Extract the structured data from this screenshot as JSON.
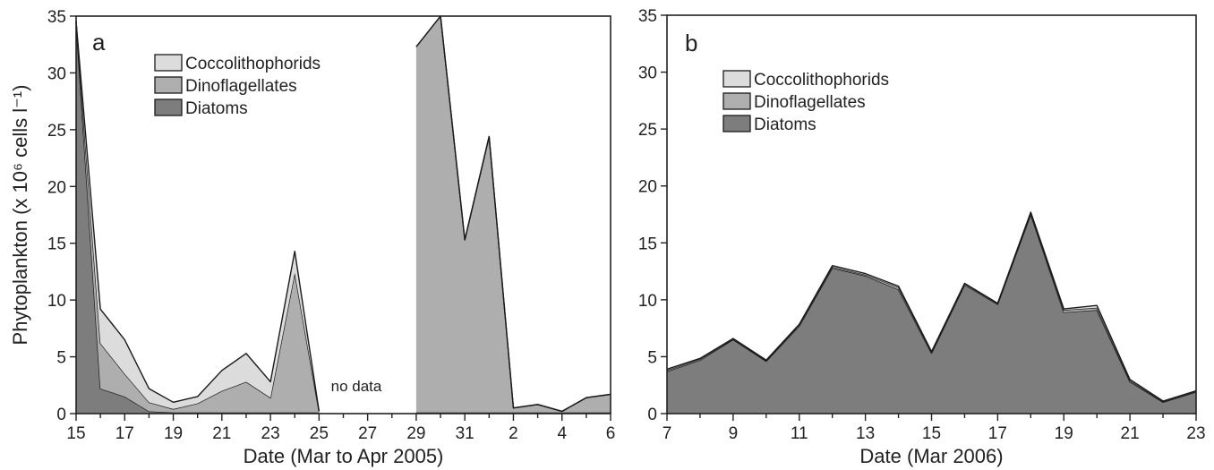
{
  "chart_data": [
    {
      "type": "area",
      "panel_label": "a",
      "xlabel": "Date (Mar to Apr 2005)",
      "ylabel": "Phytoplankton (x 10⁶ cells l⁻¹)",
      "ylim": [
        0,
        35
      ],
      "yticks": [
        0,
        5,
        10,
        15,
        20,
        25,
        30,
        35
      ],
      "x": [
        15,
        16,
        17,
        18,
        19,
        20,
        21,
        22,
        23,
        24,
        25,
        26,
        27,
        28,
        29,
        30,
        31,
        32,
        33,
        34,
        35,
        36,
        37
      ],
      "xtick_labels": [
        "15",
        "17",
        "19",
        "21",
        "23",
        "25",
        "27",
        "29",
        "31",
        "2",
        "4",
        "6"
      ],
      "stacked": true,
      "series": [
        {
          "name": "Diatoms",
          "color": "#7d7d7d",
          "values": [
            34.5,
            2.2,
            1.5,
            0.2,
            0.1,
            0.1,
            0.1,
            0.1,
            0.1,
            0.1,
            0.1,
            null,
            null,
            null,
            0.1,
            0.1,
            0.1,
            0.1,
            0.1,
            0.1,
            0.1,
            0.1,
            0.1
          ]
        },
        {
          "name": "Dinoflagellates",
          "color": "#aeaeae",
          "values": [
            0,
            4.0,
            2.0,
            0.8,
            0.3,
            0.8,
            1.9,
            2.7,
            1.3,
            12.3,
            0.1,
            null,
            null,
            null,
            32.2,
            34.9,
            15.2,
            24.3,
            0.4,
            0.7,
            0.1,
            1.3,
            1.6
          ]
        },
        {
          "name": "Coccolithophorids",
          "color": "#dcdcdc",
          "values": [
            0,
            3.0,
            3.0,
            1.2,
            0.6,
            0.6,
            1.8,
            2.5,
            1.4,
            1.9,
            0,
            null,
            null,
            null,
            0,
            0,
            0,
            0,
            0,
            0,
            0,
            0,
            0
          ]
        }
      ],
      "annotations": [
        "no data"
      ],
      "legend": "top-left"
    },
    {
      "type": "area",
      "panel_label": "b",
      "xlabel": "Date (Mar 2006)",
      "ylabel": "",
      "ylim": [
        0,
        35
      ],
      "yticks": [
        0,
        5,
        10,
        15,
        20,
        25,
        30,
        35
      ],
      "x": [
        7,
        8,
        9,
        10,
        11,
        12,
        13,
        14,
        15,
        16,
        17,
        18,
        19,
        20,
        21,
        22,
        23
      ],
      "xtick_labels": [
        "7",
        "9",
        "11",
        "13",
        "15",
        "17",
        "19",
        "21",
        "23"
      ],
      "stacked": true,
      "series": [
        {
          "name": "Diatoms",
          "color": "#7d7d7d",
          "values": [
            3.7,
            4.7,
            6.5,
            4.6,
            7.7,
            12.8,
            12.1,
            10.9,
            5.3,
            11.3,
            9.6,
            17.5,
            8.9,
            9.1,
            2.8,
            1.0,
            1.9
          ]
        },
        {
          "name": "Dinoflagellates",
          "color": "#aeaeae",
          "values": [
            0.1,
            0.1,
            0.05,
            0.05,
            0.1,
            0.1,
            0.1,
            0.2,
            0.1,
            0.1,
            0.05,
            0.1,
            0.2,
            0.2,
            0.1,
            0.05,
            0.05
          ]
        },
        {
          "name": "Coccolithophorids",
          "color": "#dcdcdc",
          "values": [
            0.1,
            0.05,
            0.05,
            0.05,
            0.05,
            0.1,
            0.1,
            0.1,
            0.05,
            0.05,
            0.05,
            0.1,
            0.1,
            0.2,
            0.1,
            0.05,
            0.05
          ]
        }
      ],
      "legend": "top-left"
    }
  ]
}
